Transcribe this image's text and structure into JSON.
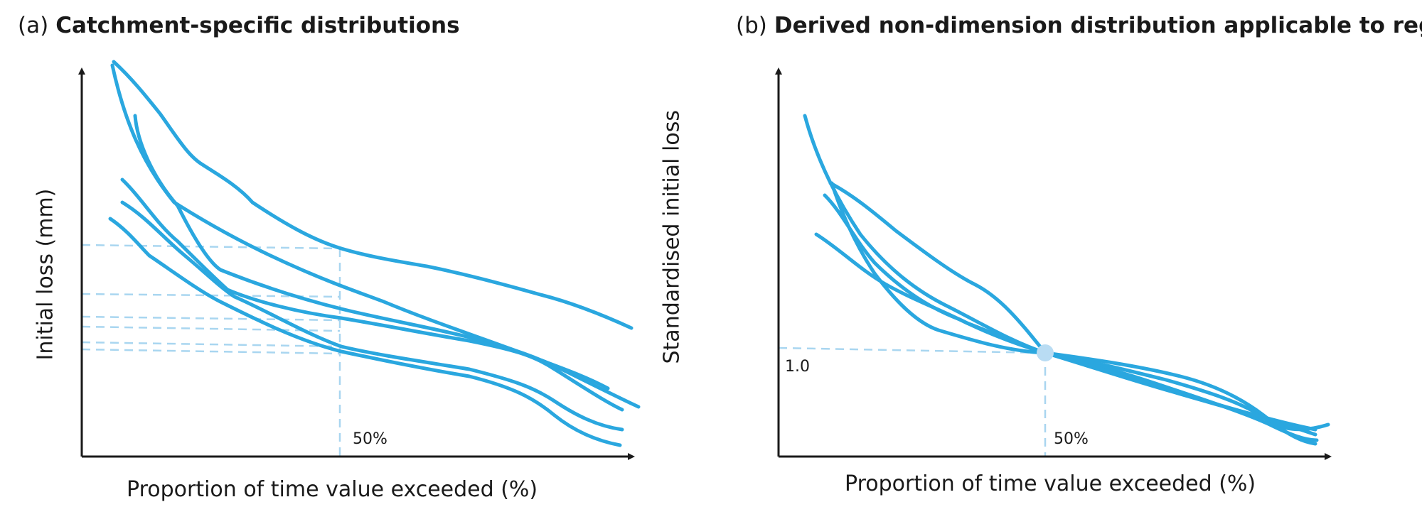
{
  "panel_a": {
    "tag": "(a)",
    "title": "Catchment-specific distributions",
    "xlabel": "Proportion of time value exceeded (%)",
    "ylabel": "Initial loss (mm)",
    "marker_label": "50%"
  },
  "panel_b": {
    "tag": "(b)",
    "title": "Derived non-dimension distribution applicable to region",
    "xlabel": "Proportion of time value exceeded (%)",
    "ylabel": "Standardised initial loss",
    "marker_label": "50%",
    "reference_label": "1.0"
  },
  "colors": {
    "curve": "#2aa7df",
    "guide": "#a9d6f0",
    "axis": "#1a1a1a",
    "point": "#b9dcf3"
  }
}
